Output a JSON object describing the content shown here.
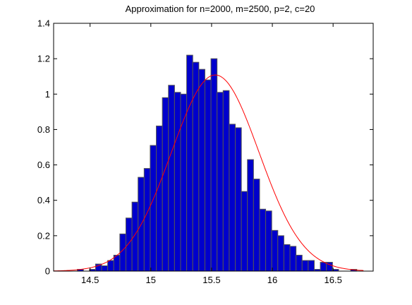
{
  "figure": {
    "background": "#ffffff"
  },
  "chart_data": {
    "type": "bar",
    "title": "Approximation for n=2000, m=2500, p=2, c=20",
    "xlabel": "",
    "ylabel": "",
    "xlim": [
      14.2,
      16.83
    ],
    "ylim": [
      0,
      1.4
    ],
    "grid": false,
    "legend": "none",
    "xticks": [
      14.5,
      15,
      15.5,
      16,
      16.5
    ],
    "xtick_labels": [
      "14.5",
      "15",
      "15.5",
      "16",
      "16.5"
    ],
    "yticks": [
      0,
      0.2,
      0.4,
      0.6,
      0.8,
      1,
      1.2,
      1.4
    ],
    "ytick_labels": [
      "0",
      "0.2",
      "0.4",
      "0.6",
      "0.8",
      "1",
      "1.2",
      "1.4"
    ],
    "histogram": {
      "bin_width": 0.05,
      "bin_centers": [
        14.27,
        14.32,
        14.37,
        14.42,
        14.47,
        14.52,
        14.57,
        14.62,
        14.67,
        14.72,
        14.77,
        14.82,
        14.87,
        14.92,
        14.97,
        15.02,
        15.07,
        15.12,
        15.17,
        15.22,
        15.27,
        15.32,
        15.37,
        15.42,
        15.47,
        15.52,
        15.57,
        15.62,
        15.67,
        15.72,
        15.77,
        15.82,
        15.87,
        15.92,
        15.97,
        16.02,
        16.07,
        16.12,
        16.17,
        16.22,
        16.27,
        16.32,
        16.37,
        16.42,
        16.47,
        16.52,
        16.57,
        16.62,
        16.67,
        16.72
      ],
      "values": [
        0,
        0,
        0,
        0.01,
        0,
        0.01,
        0.04,
        0.03,
        0.06,
        0.09,
        0.21,
        0.3,
        0.39,
        0.53,
        0.58,
        0.71,
        0.82,
        0.98,
        1.05,
        1.01,
        1.0,
        1.22,
        1.18,
        1.14,
        1.08,
        1.2,
        1.01,
        1.02,
        0.83,
        0.81,
        0.45,
        0.63,
        0.52,
        0.35,
        0.34,
        0.23,
        0.2,
        0.15,
        0.14,
        0.09,
        0.06,
        0.06,
        0.01,
        0.05,
        0.05,
        0.01,
        0,
        0,
        0.01,
        0
      ],
      "fill": "#0000cc",
      "edge": "#555555"
    },
    "curve": {
      "label": "",
      "type": "normal",
      "mean": 15.53,
      "std": 0.36,
      "color": "#ff0000",
      "x_range": [
        14.2,
        16.75
      ]
    }
  }
}
